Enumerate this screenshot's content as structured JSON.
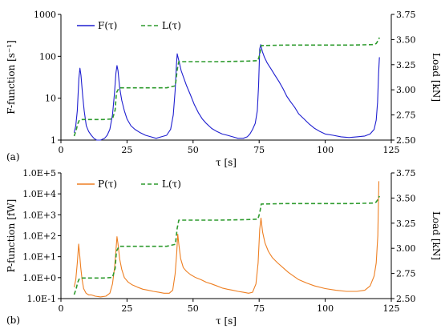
{
  "chart_data": [
    {
      "type": "line",
      "panel_label": "(a)",
      "xlabel": "τ [s]",
      "ylabel": "F-function [s⁻¹]",
      "y2label": "Load [kN]",
      "xlim": [
        0,
        125
      ],
      "ylim": [
        1,
        1000
      ],
      "yscale": "log",
      "y2lim": [
        2.5,
        3.75
      ],
      "x_ticks": [
        "0",
        "25",
        "50",
        "75",
        "100",
        "125"
      ],
      "y_ticks": [
        "1",
        "10",
        "100",
        "1000"
      ],
      "y2_ticks": [
        "2.50",
        "2.75",
        "3.00",
        "3.25",
        "3.50",
        "3.75"
      ],
      "legend_position": "top-left",
      "series": [
        {
          "name": "F(τ)",
          "axis": "left",
          "color": "#1f1fd0",
          "style": "solid",
          "x": [
            5,
            5.6,
            6.2,
            6.8,
            7.2,
            7.6,
            8.2,
            8.8,
            9.6,
            10.5,
            11.5,
            12.5,
            13.5,
            15,
            16.5,
            17.5,
            18.5,
            19.5,
            20.2,
            20.8,
            21.2,
            21.6,
            22.2,
            23,
            24,
            25,
            26.5,
            28,
            30,
            32,
            34,
            36,
            38,
            40,
            41.5,
            42.5,
            43.2,
            43.7,
            44,
            44.3,
            44.8,
            45.5,
            46.5,
            47.5,
            49,
            50.5,
            52,
            53.5,
            55,
            57,
            59,
            61,
            63,
            65,
            67,
            69,
            70.5,
            71.5,
            72.5,
            73.5,
            74.3,
            74.8,
            75.2,
            75.6,
            76.2,
            77,
            78,
            79.5,
            81,
            82.5,
            84,
            85.5,
            87,
            88.5,
            90,
            92,
            94,
            96,
            98,
            100,
            103,
            106,
            109,
            112,
            115,
            117,
            118.5,
            119.3,
            119.8,
            120.2,
            120.5
          ],
          "y": [
            1.5,
            2.2,
            5,
            30,
            52,
            35,
            12,
            5,
            2.2,
            1.6,
            1.3,
            1.1,
            1.0,
            1.0,
            1.1,
            1.3,
            1.8,
            4,
            12,
            40,
            60,
            45,
            18,
            9,
            5,
            3.2,
            2.2,
            1.8,
            1.5,
            1.3,
            1.2,
            1.1,
            1.2,
            1.3,
            1.8,
            4,
            15,
            60,
            115,
            95,
            70,
            45,
            30,
            20,
            12,
            7,
            4.5,
            3.2,
            2.5,
            1.9,
            1.6,
            1.4,
            1.3,
            1.2,
            1.1,
            1.1,
            1.2,
            1.4,
            1.8,
            2.5,
            5,
            20,
            150,
            190,
            130,
            95,
            70,
            50,
            35,
            25,
            17,
            11,
            8,
            6,
            4.2,
            3.2,
            2.4,
            1.9,
            1.6,
            1.4,
            1.3,
            1.2,
            1.15,
            1.2,
            1.25,
            1.4,
            1.8,
            3,
            8,
            40,
            95
          ]
        },
        {
          "name": "L(τ)",
          "axis": "right",
          "color": "#2e9b2e",
          "style": "dashed",
          "x": [
            5,
            5.8,
            6.3,
            7,
            8,
            12,
            16,
            19.5,
            20.5,
            21,
            22,
            30,
            40,
            43.3,
            44,
            44.6,
            50,
            60,
            70,
            74.5,
            75.2,
            75.8,
            85,
            100,
            110,
            118,
            119.3,
            120,
            120.5
          ],
          "y": [
            2.54,
            2.6,
            2.66,
            2.7,
            2.705,
            2.705,
            2.705,
            2.71,
            2.8,
            2.97,
            3.02,
            3.02,
            3.02,
            3.04,
            3.2,
            3.28,
            3.28,
            3.28,
            3.285,
            3.29,
            3.35,
            3.44,
            3.445,
            3.445,
            3.445,
            3.45,
            3.46,
            3.49,
            3.52
          ]
        }
      ]
    },
    {
      "type": "line",
      "panel_label": "(b)",
      "xlabel": "τ [s]",
      "ylabel": "P-function [fW]",
      "y2label": "Load [kN]",
      "xlim": [
        0,
        125
      ],
      "ylim": [
        0.1,
        100000
      ],
      "yscale": "log",
      "y2lim": [
        2.5,
        3.75
      ],
      "x_ticks": [
        "0",
        "25",
        "50",
        "75",
        "100",
        "125"
      ],
      "y_ticks": [
        "1.0E-1",
        "1.0E+0",
        "1.0E+1",
        "1.0E+2",
        "1.0E+3",
        "1.0E+4",
        "1.0E+5"
      ],
      "y2_ticks": [
        "2.50",
        "2.75",
        "3.00",
        "3.25",
        "3.50",
        "3.75"
      ],
      "legend_position": "top-left",
      "series": [
        {
          "name": "P(τ)",
          "axis": "left",
          "color": "#ee7f22",
          "style": "solid",
          "x": [
            5,
            5.6,
            6.2,
            6.7,
            7.1,
            7.5,
            8,
            8.6,
            9.5,
            10.5,
            11.5,
            13,
            15,
            17,
            18.5,
            19.5,
            20.3,
            20.8,
            21.2,
            21.6,
            22.2,
            23,
            24,
            25.5,
            27,
            29,
            31,
            33,
            35,
            37,
            39,
            41,
            42.3,
            43.2,
            43.8,
            44.2,
            44.6,
            45.3,
            46.3,
            47.5,
            49,
            51,
            53,
            55,
            57,
            59,
            61,
            63,
            65,
            67,
            69,
            71,
            72.5,
            73.8,
            74.6,
            75.2,
            75.7,
            76.3,
            77.2,
            78.5,
            80,
            82,
            84,
            86,
            88,
            90,
            93,
            96,
            100,
            104,
            108,
            112,
            115,
            117,
            118.5,
            119.3,
            119.9,
            120.3
          ],
          "y": [
            0.35,
            0.8,
            5,
            40,
            12,
            3,
            0.8,
            0.3,
            0.18,
            0.15,
            0.15,
            0.13,
            0.12,
            0.13,
            0.18,
            0.5,
            3,
            20,
            90,
            40,
            8,
            2.5,
            1,
            0.6,
            0.45,
            0.35,
            0.28,
            0.25,
            0.22,
            0.2,
            0.18,
            0.18,
            0.25,
            1.5,
            15,
            120,
            40,
            8,
            3,
            2,
            1.4,
            1,
            0.8,
            0.6,
            0.5,
            0.4,
            0.32,
            0.28,
            0.25,
            0.22,
            0.2,
            0.18,
            0.2,
            0.5,
            5,
            200,
            700,
            150,
            45,
            18,
            9,
            5,
            3,
            1.8,
            1.2,
            0.8,
            0.55,
            0.4,
            0.3,
            0.25,
            0.22,
            0.22,
            0.25,
            0.4,
            1.2,
            5,
            100,
            40000
          ]
        },
        {
          "name": "L(τ)",
          "axis": "right",
          "color": "#2e9b2e",
          "style": "dashed",
          "x": [
            5,
            5.8,
            6.3,
            7,
            8,
            12,
            16,
            19.5,
            20.5,
            21,
            22,
            30,
            40,
            43.3,
            44,
            44.6,
            50,
            60,
            70,
            74.5,
            75.2,
            75.8,
            85,
            100,
            110,
            118,
            119.3,
            120,
            120.5
          ],
          "y": [
            2.54,
            2.6,
            2.66,
            2.7,
            2.705,
            2.705,
            2.705,
            2.71,
            2.8,
            2.97,
            3.02,
            3.02,
            3.02,
            3.04,
            3.2,
            3.28,
            3.28,
            3.28,
            3.285,
            3.29,
            3.35,
            3.44,
            3.445,
            3.445,
            3.445,
            3.45,
            3.46,
            3.49,
            3.52
          ]
        }
      ]
    }
  ]
}
